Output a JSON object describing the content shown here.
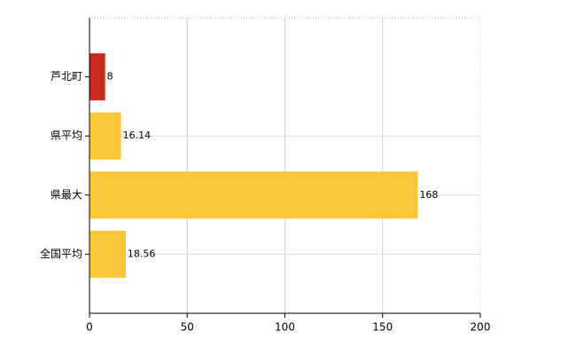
{
  "chart_data": {
    "type": "hbar",
    "categories": [
      "芦北町",
      "県平均",
      "県最大",
      "全国平均"
    ],
    "values": [
      8,
      16.14,
      168,
      18.56
    ],
    "colors": [
      "#cc2a1e",
      "#fcc63a",
      "#fcc63a",
      "#fcc63a"
    ],
    "xlim": [
      0,
      200
    ],
    "xticks": [
      0,
      50,
      100,
      150,
      200
    ],
    "grid": true
  }
}
